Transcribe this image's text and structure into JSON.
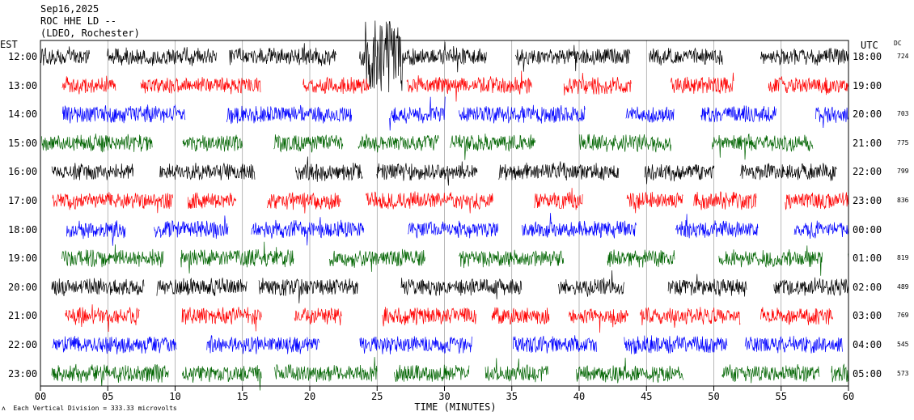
{
  "header": {
    "date": "Sep16,2025",
    "station": "ROC HHE LD --",
    "location": "(LDEO, Rochester)"
  },
  "left_axis_title": "EST",
  "right_axis_title": "UTC",
  "dc_title": "DC",
  "footnote": "Each Vertical Division = 333.33 microvolts",
  "chart_data": {
    "type": "line",
    "xlabel": "TIME (MINUTES)",
    "xlim": [
      0,
      60
    ],
    "x_ticks": [
      "00",
      "05",
      "10",
      "15",
      "20",
      "25",
      "30",
      "35",
      "40",
      "45",
      "50",
      "55",
      "60"
    ],
    "vertical_grid_every_minutes": 5,
    "trace_color_cycle": [
      "#000000",
      "#ff0000",
      "#0000ff",
      "#006400"
    ],
    "rows": [
      {
        "est": "12:00",
        "utc": "18:00",
        "dc": "724"
      },
      {
        "est": "13:00",
        "utc": "19:00",
        "dc": ""
      },
      {
        "est": "14:00",
        "utc": "20:00",
        "dc": "703"
      },
      {
        "est": "15:00",
        "utc": "21:00",
        "dc": "775"
      },
      {
        "est": "16:00",
        "utc": "22:00",
        "dc": "799"
      },
      {
        "est": "17:00",
        "utc": "23:00",
        "dc": "836"
      },
      {
        "est": "18:00",
        "utc": "00:00",
        "dc": ""
      },
      {
        "est": "19:00",
        "utc": "01:00",
        "dc": "819"
      },
      {
        "est": "20:00",
        "utc": "02:00",
        "dc": "489"
      },
      {
        "est": "21:00",
        "utc": "03:00",
        "dc": "769"
      },
      {
        "est": "22:00",
        "utc": "04:00",
        "dc": "545"
      },
      {
        "est": "23:00",
        "utc": "05:00",
        "dc": "573"
      }
    ],
    "event": {
      "start_minute": 24,
      "end_minute": 27,
      "row": 0
    }
  }
}
